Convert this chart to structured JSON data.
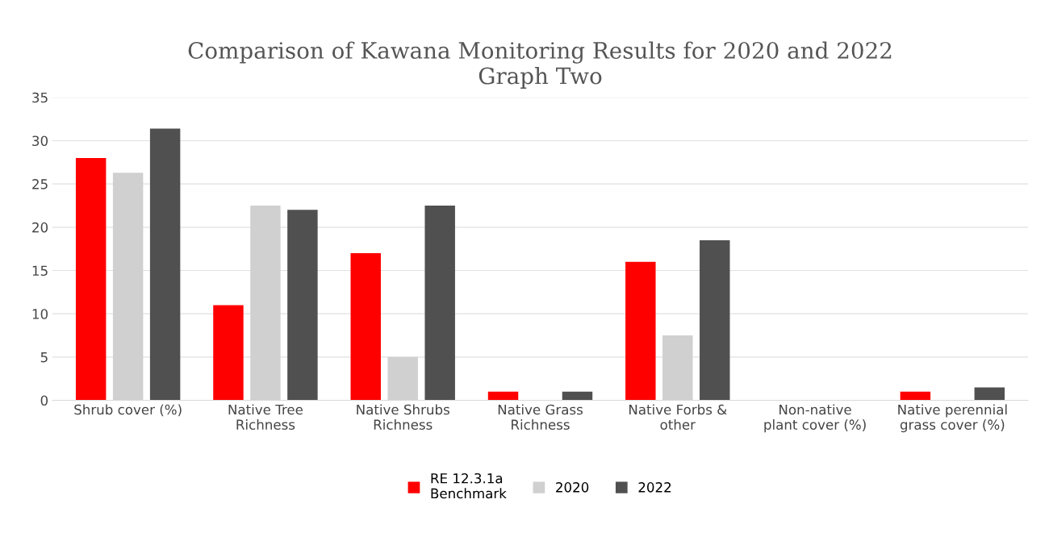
{
  "chart_data": {
    "type": "bar",
    "title": "Comparison of Kawana Monitoring Results for 2020 and 2022\nGraph Two",
    "categories": [
      "Shrub cover (%)",
      "Native Tree\nRichness",
      "Native Shrubs\nRichness",
      "Native Grass\nRichness",
      "Native Forbs &\nother",
      "Non-native\nplant cover (%)",
      "Native perennial\ngrass cover (%)"
    ],
    "series": [
      {
        "name": "RE 12.3.1a\nBenchmark",
        "color": "#ff0000",
        "values": [
          28,
          11,
          17,
          1,
          16,
          0,
          1
        ]
      },
      {
        "name": "2020",
        "color": "#d0d0d0",
        "values": [
          26.3,
          22.5,
          5,
          0,
          7.5,
          0,
          0
        ]
      },
      {
        "name": "2022",
        "color": "#505050",
        "values": [
          31.4,
          22,
          22.5,
          1,
          18.5,
          0,
          1.5
        ]
      }
    ],
    "ylim": [
      0,
      35
    ],
    "yticks": [
      0,
      5,
      10,
      15,
      20,
      25,
      30,
      35
    ],
    "grid": "y",
    "legend": "bottom"
  }
}
